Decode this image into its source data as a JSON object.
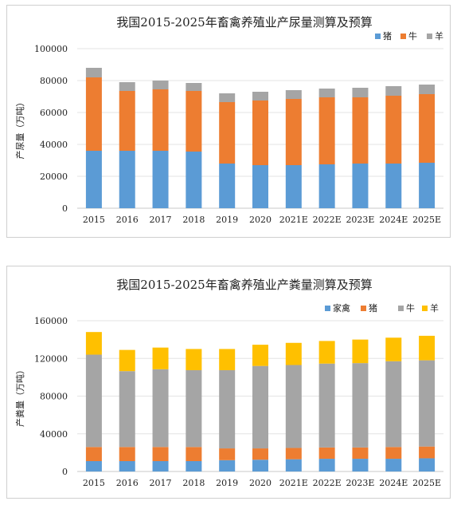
{
  "charts": [
    {
      "title": "我国2015-2025年畜禽养殖业产尿量测算及预算",
      "ylabel": "产尿量（万吨）",
      "yticks": [
        "0",
        "20000",
        "40000",
        "60000",
        "80000",
        "100000"
      ]
    },
    {
      "title": "我国2015-2025年畜禽养殖业产粪量测算及预算",
      "ylabel": "产粪量（万吨）",
      "yticks": [
        "0",
        "40000",
        "80000",
        "120000",
        "160000"
      ]
    }
  ],
  "chart_data": [
    {
      "type": "bar",
      "stacked": true,
      "title": "我国2015-2025年畜禽养殖业产尿量测算及预算",
      "ylabel": "产尿量（万吨）",
      "xlabel": "",
      "ylim": [
        0,
        100000
      ],
      "grid": true,
      "legend": "top-right",
      "categories": [
        "2015",
        "2016",
        "2017",
        "2018",
        "2019",
        "2020",
        "2021E",
        "2022E",
        "2023E",
        "2024E",
        "2025E"
      ],
      "series": [
        {
          "name": "猪",
          "color": "#5B9BD5",
          "values": [
            36000,
            36000,
            36000,
            35500,
            28000,
            27000,
            27000,
            27500,
            28000,
            28000,
            28500
          ]
        },
        {
          "name": "牛",
          "color": "#ED7D31",
          "values": [
            46000,
            37500,
            38500,
            38000,
            38500,
            40500,
            41500,
            42000,
            41500,
            42500,
            43000
          ]
        },
        {
          "name": "羊",
          "color": "#A5A5A5",
          "values": [
            6000,
            5500,
            5500,
            5000,
            5500,
            5500,
            5500,
            5500,
            6000,
            6000,
            6000
          ]
        }
      ]
    },
    {
      "type": "bar",
      "stacked": true,
      "title": "我国2015-2025年畜禽养殖业产粪量测算及预算",
      "ylabel": "产粪量（万吨）",
      "xlabel": "",
      "ylim": [
        0,
        160000
      ],
      "grid": true,
      "legend": "top-right",
      "categories": [
        "2015",
        "2016",
        "2017",
        "2018",
        "2019",
        "2020",
        "2021E",
        "2022E",
        "2023E",
        "2024E",
        "2025E"
      ],
      "series": [
        {
          "name": "家禽",
          "color": "#5B9BD5",
          "values": [
            11000,
            11000,
            11000,
            11000,
            12000,
            12500,
            13000,
            13500,
            13500,
            13500,
            14000
          ]
        },
        {
          "name": "猪",
          "color": "#ED7D31",
          "values": [
            15000,
            15000,
            15000,
            15000,
            12500,
            12000,
            12000,
            12000,
            12000,
            12500,
            12500
          ]
        },
        {
          "name": "牛",
          "color": "#A5A5A5",
          "values": [
            98000,
            80500,
            82500,
            81500,
            83000,
            87500,
            88000,
            89000,
            89500,
            91000,
            91500
          ]
        },
        {
          "name": "羊",
          "color": "#FFC000",
          "values": [
            24000,
            22500,
            23000,
            22500,
            22500,
            22500,
            23500,
            24000,
            25000,
            25000,
            26000
          ]
        }
      ]
    }
  ]
}
